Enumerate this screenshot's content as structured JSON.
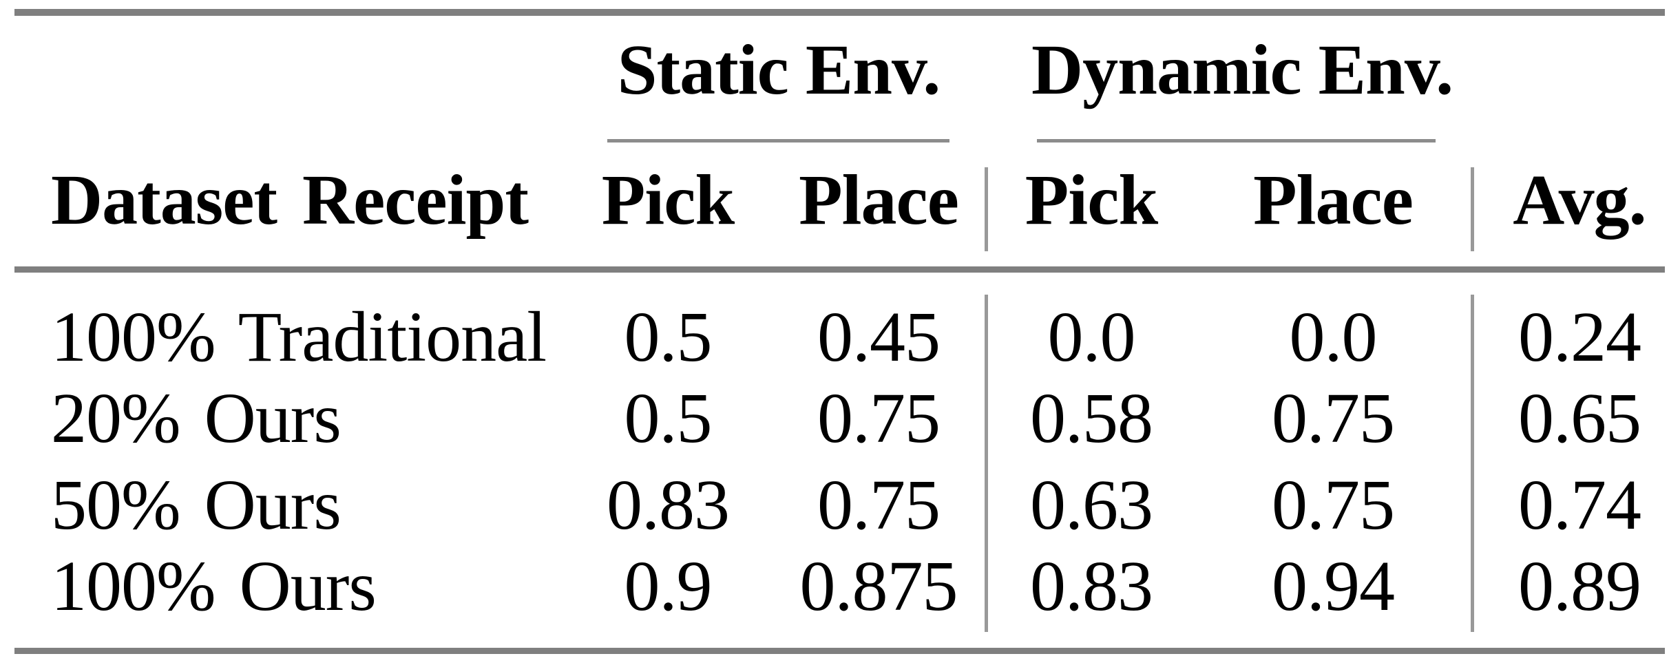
{
  "figure": {
    "description": "Results table comparing pick-and-place success rates in static and dynamic environments"
  },
  "table": {
    "groups": [
      {
        "label": "Static Env."
      },
      {
        "label": "Dynamic Env."
      }
    ],
    "headers": {
      "row_header": "Dataset Receipt",
      "static_pick": "Pick",
      "static_place": "Place",
      "dynamic_pick": "Pick",
      "dynamic_place": "Place",
      "avg": "Avg."
    },
    "rows": [
      {
        "label": "100% Traditional",
        "values": [
          "0.5",
          "0.45",
          "0.0",
          "0.0",
          "0.24"
        ]
      },
      {
        "label": "20% Ours",
        "values": [
          "0.5",
          "0.75",
          "0.58",
          "0.75",
          "0.65"
        ]
      },
      {
        "label": "50% Ours",
        "values": [
          "0.83",
          "0.75",
          "0.63",
          "0.75",
          "0.74"
        ]
      },
      {
        "label": "100% Ours",
        "values": [
          "0.9",
          "0.875",
          "0.83",
          "0.94",
          "0.89"
        ]
      }
    ]
  },
  "colors": {
    "heavy_rule": "#7f7f7f",
    "light_rule": "#8c8c8c",
    "vertical_rule": "#999999",
    "text": "#000000",
    "background": "#ffffff"
  },
  "chart_data": {
    "type": "table",
    "title": "",
    "column_groups": [
      {
        "label": "Static Env.",
        "columns": [
          "Pick",
          "Place"
        ]
      },
      {
        "label": "Dynamic Env.",
        "columns": [
          "Pick",
          "Place"
        ]
      }
    ],
    "columns": [
      "Dataset Receipt",
      "Static Env. Pick",
      "Static Env. Place",
      "Dynamic Env. Pick",
      "Dynamic Env. Place",
      "Avg."
    ],
    "rows": [
      [
        "100% Traditional",
        0.5,
        0.45,
        0.0,
        0.0,
        0.24
      ],
      [
        "20% Ours",
        0.5,
        0.75,
        0.58,
        0.75,
        0.65
      ],
      [
        "50% Ours",
        0.83,
        0.75,
        0.63,
        0.75,
        0.74
      ],
      [
        "100% Ours",
        0.9,
        0.875,
        0.83,
        0.94,
        0.89
      ]
    ]
  }
}
